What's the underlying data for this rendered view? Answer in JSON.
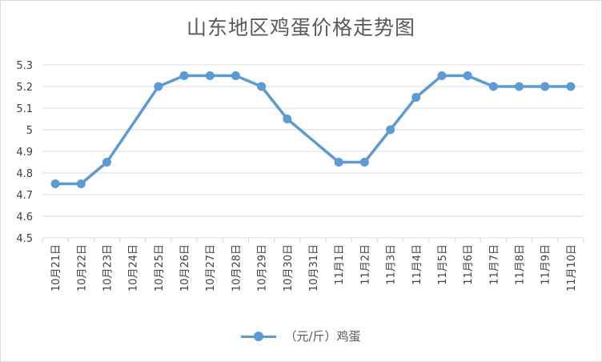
{
  "chart_data": {
    "type": "line",
    "title": "山东地区鸡蛋价格走势图",
    "categories": [
      "10月21日",
      "10月22日",
      "10月23日",
      "10月24日",
      "10月25日",
      "10月26日",
      "10月27日",
      "10月28日",
      "10月29日",
      "10月30日",
      "10月31日",
      "11月1日",
      "11月2日",
      "11月3日",
      "11月4日",
      "11月5日",
      "11月6日",
      "11月7日",
      "11月8日",
      "11月9日",
      "11月10日"
    ],
    "series": [
      {
        "name": "（元/斤）鸡蛋",
        "color": "#5b9bd5",
        "values": [
          4.75,
          4.75,
          4.85,
          null,
          5.2,
          5.25,
          5.25,
          5.25,
          5.2,
          5.05,
          null,
          4.85,
          4.85,
          5.0,
          5.15,
          5.25,
          5.25,
          5.2,
          5.2,
          5.2,
          5.2
        ]
      }
    ],
    "ylim": [
      4.5,
      5.3
    ],
    "yticks": [
      "4.5",
      "4.6",
      "4.7",
      "4.8",
      "4.9",
      "5",
      "5.1",
      "5.2",
      "5.3"
    ],
    "grid": true,
    "legend": "bottom"
  }
}
